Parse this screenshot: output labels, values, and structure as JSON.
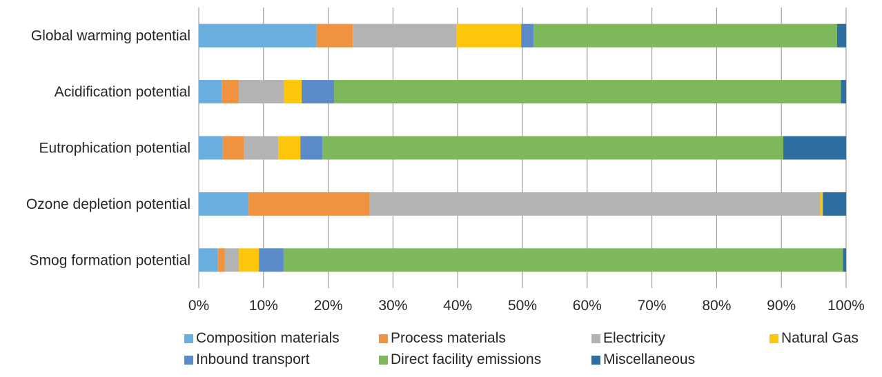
{
  "chart_data": {
    "type": "bar",
    "orientation": "horizontal",
    "stacked": "percent",
    "categories": [
      "Global warming potential",
      "Acidification potential",
      "Eutrophication potential",
      "Ozone depletion potential",
      "Smog formation potential"
    ],
    "series": [
      {
        "name": "Composition materials",
        "color": "#6aaee0",
        "values": [
          18.2,
          3.6,
          3.7,
          7.7,
          2.9
        ]
      },
      {
        "name": "Process materials",
        "color": "#f09340",
        "values": [
          5.6,
          2.6,
          3.3,
          18.7,
          1.1
        ]
      },
      {
        "name": "Electricity",
        "color": "#b3b3b3",
        "values": [
          16.0,
          7.0,
          5.3,
          69.6,
          2.2
        ]
      },
      {
        "name": "Natural Gas",
        "color": "#fdc60a",
        "values": [
          10.0,
          2.7,
          3.4,
          0.4,
          3.1
        ]
      },
      {
        "name": "Inbound transport",
        "color": "#5a8ac8",
        "values": [
          1.9,
          5.0,
          3.4,
          0.0,
          3.8
        ]
      },
      {
        "name": "Direct facility emissions",
        "color": "#7fb85a",
        "values": [
          46.9,
          78.3,
          71.2,
          0.0,
          86.4
        ]
      },
      {
        "name": "Miscellaneous",
        "color": "#2f6ea0",
        "values": [
          1.4,
          0.8,
          9.7,
          3.6,
          0.5
        ]
      }
    ],
    "xlim": [
      0,
      100
    ],
    "xticks": [
      "0%",
      "10%",
      "20%",
      "30%",
      "40%",
      "50%",
      "60%",
      "70%",
      "80%",
      "90%",
      "100%"
    ],
    "grid": "vertical",
    "legend": "bottom"
  }
}
